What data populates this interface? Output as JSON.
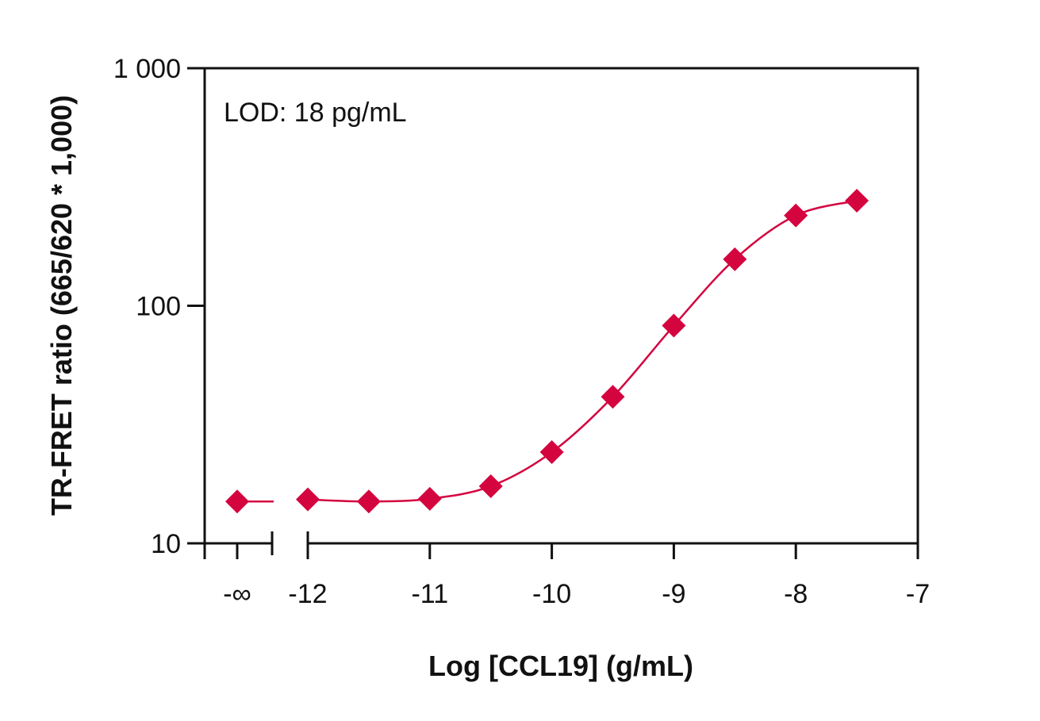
{
  "chart_data": {
    "type": "line",
    "title": "",
    "xlabel": "Log [CCL19] (g/mL)",
    "ylabel": "TR-FRET ratio (665/620 * 1,000)",
    "yscale": "log",
    "ylim": [
      10,
      1000
    ],
    "xlim": [
      -12,
      -7
    ],
    "x_break_label": "-∞",
    "x_ticks": [
      -12,
      -11,
      -10,
      -9,
      -8,
      -7
    ],
    "x_tick_labels": [
      "-12",
      "-11",
      "-10",
      "-9",
      "-8",
      "-7"
    ],
    "y_ticks": [
      10,
      100,
      1000
    ],
    "y_tick_labels": [
      "10",
      "100",
      "1 000"
    ],
    "annotation": "LOD: 18 pg/mL",
    "grid": false,
    "legend": "none",
    "color": "#d4043f",
    "marker": "diamond",
    "zero_point": {
      "x": "-∞",
      "y": 15.0
    },
    "series": [
      {
        "x": [
          -12,
          -11.5,
          -11,
          -10.5,
          -10,
          -9.5,
          -9,
          -8.5,
          -8,
          -7.5
        ],
        "y": [
          15.3,
          15.0,
          15.4,
          17.4,
          24.2,
          41.4,
          82.5,
          157,
          240,
          277
        ]
      }
    ]
  }
}
